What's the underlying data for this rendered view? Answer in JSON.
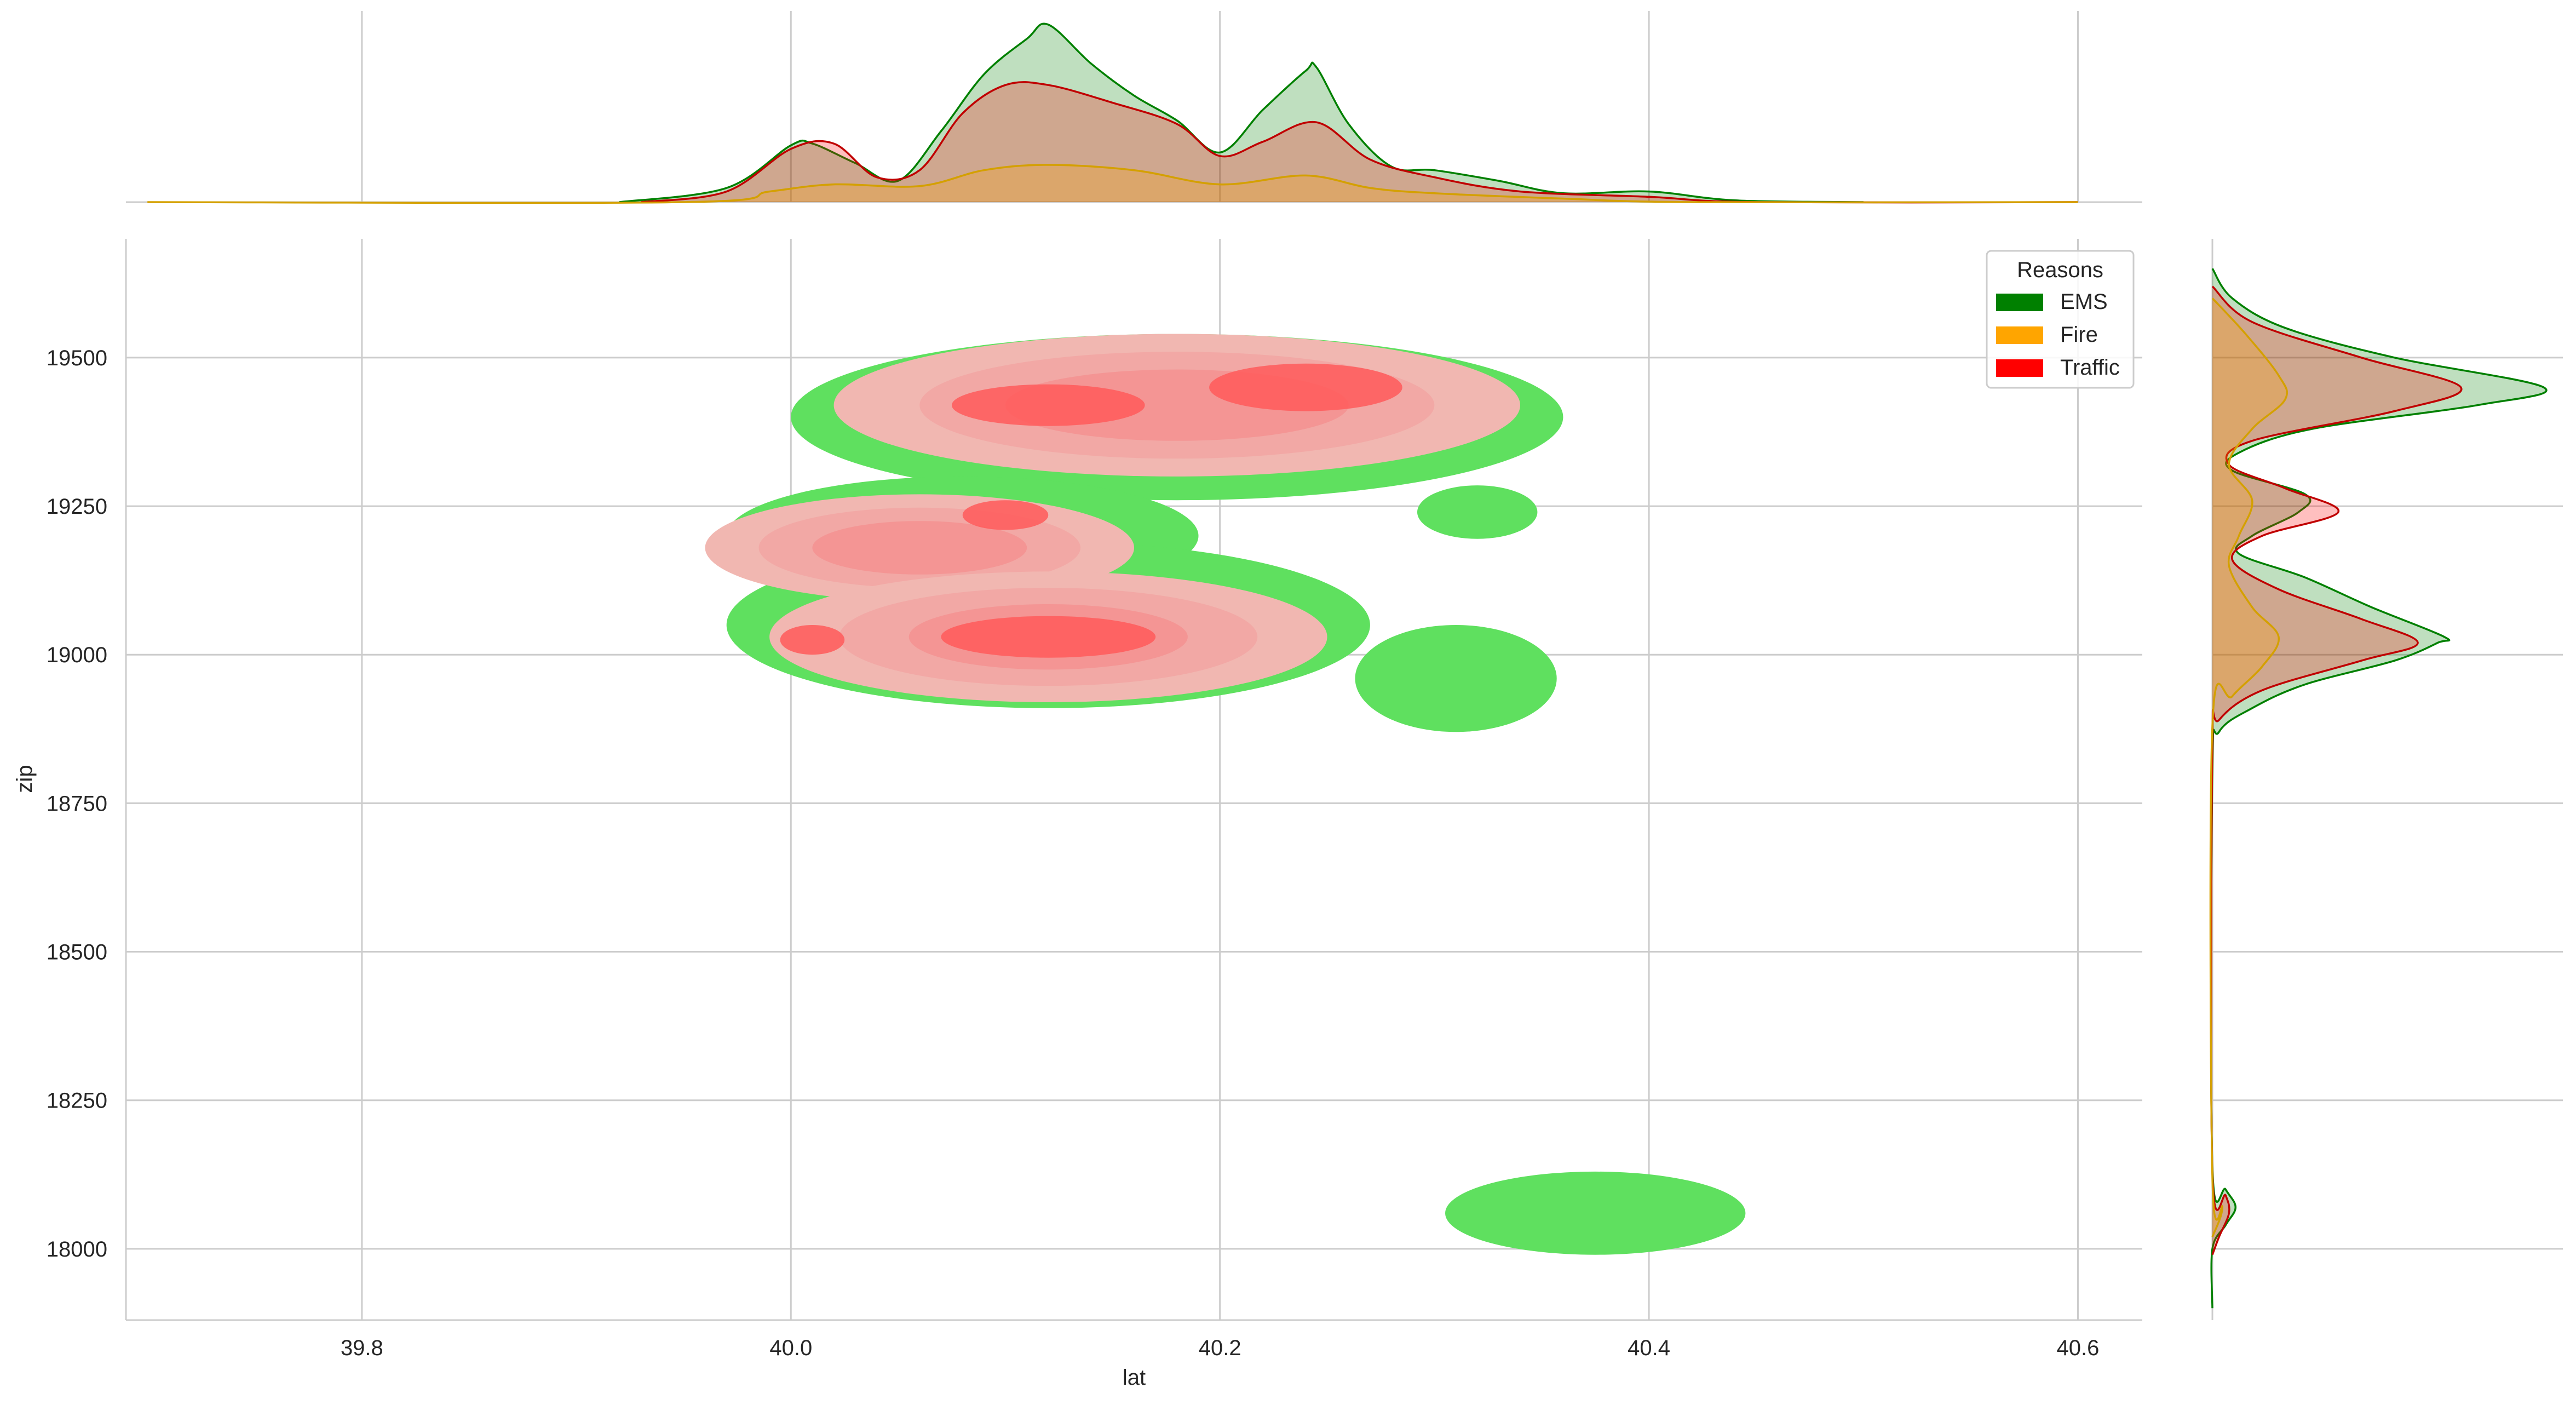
{
  "chart_data": {
    "type": "kde-joint",
    "xlabel": "lat",
    "ylabel": "zip",
    "xlim": [
      39.69,
      40.63
    ],
    "ylim": [
      17880,
      19700
    ],
    "x_ticks": [
      39.8,
      40.0,
      40.2,
      40.4,
      40.6
    ],
    "x_tick_labels": [
      "39.8",
      "40.0",
      "40.2",
      "40.4",
      "40.6"
    ],
    "y_ticks": [
      18000,
      18250,
      18500,
      18750,
      19000,
      19250,
      19500
    ],
    "y_tick_labels": [
      "18000",
      "18250",
      "18500",
      "18750",
      "19000",
      "19250",
      "19500"
    ],
    "grid": true,
    "legend": {
      "title": "Reasons",
      "placement": "top-right",
      "entries": [
        {
          "label": "EMS",
          "color": "#008000"
        },
        {
          "label": "Fire",
          "color": "#FFA500"
        },
        {
          "label": "Traffic",
          "color": "#FF0000"
        }
      ]
    },
    "series": [
      {
        "name": "EMS",
        "color": "#008000",
        "contour_color": "#5fe05f",
        "density_regions": [
          {
            "cx": 40.18,
            "cy": 19400,
            "rx": 0.18,
            "ry": 140
          },
          {
            "cx": 40.08,
            "cy": 19200,
            "rx": 0.11,
            "ry": 100
          },
          {
            "cx": 40.12,
            "cy": 19050,
            "rx": 0.15,
            "ry": 140
          },
          {
            "cx": 40.32,
            "cy": 19240,
            "rx": 0.028,
            "ry": 45
          },
          {
            "cx": 40.31,
            "cy": 18960,
            "rx": 0.047,
            "ry": 90
          },
          {
            "cx": 40.375,
            "cy": 18060,
            "rx": 0.07,
            "ry": 70
          }
        ],
        "marginal_x": [
          [
            39.92,
            0
          ],
          [
            39.97,
            0.08
          ],
          [
            40.0,
            0.32
          ],
          [
            40.01,
            0.33
          ],
          [
            40.03,
            0.22
          ],
          [
            40.05,
            0.12
          ],
          [
            40.07,
            0.4
          ],
          [
            40.09,
            0.72
          ],
          [
            40.11,
            0.92
          ],
          [
            40.12,
            1.0
          ],
          [
            40.14,
            0.78
          ],
          [
            40.16,
            0.6
          ],
          [
            40.18,
            0.46
          ],
          [
            40.2,
            0.28
          ],
          [
            40.22,
            0.52
          ],
          [
            40.24,
            0.74
          ],
          [
            40.245,
            0.76
          ],
          [
            40.26,
            0.44
          ],
          [
            40.28,
            0.2
          ],
          [
            40.3,
            0.18
          ],
          [
            40.33,
            0.12
          ],
          [
            40.36,
            0.05
          ],
          [
            40.4,
            0.06
          ],
          [
            40.44,
            0.01
          ],
          [
            40.5,
            0
          ]
        ],
        "marginal_y": [
          [
            19650,
            0
          ],
          [
            19600,
            0.06
          ],
          [
            19550,
            0.22
          ],
          [
            19500,
            0.55
          ],
          [
            19450,
            1.0
          ],
          [
            19420,
            0.8
          ],
          [
            19380,
            0.3
          ],
          [
            19340,
            0.08
          ],
          [
            19310,
            0.06
          ],
          [
            19270,
            0.28
          ],
          [
            19240,
            0.26
          ],
          [
            19200,
            0.12
          ],
          [
            19170,
            0.08
          ],
          [
            19130,
            0.28
          ],
          [
            19080,
            0.48
          ],
          [
            19030,
            0.7
          ],
          [
            19020,
            0.68
          ],
          [
            18990,
            0.55
          ],
          [
            18950,
            0.28
          ],
          [
            18910,
            0.12
          ],
          [
            18870,
            0.02
          ],
          [
            18800,
            0
          ],
          [
            18140,
            0
          ],
          [
            18100,
            0.04
          ],
          [
            18070,
            0.07
          ],
          [
            18040,
            0.04
          ],
          [
            18000,
            0
          ],
          [
            17900,
            0
          ]
        ]
      },
      {
        "name": "Fire",
        "color": "#FFA500",
        "contour_color": "#f1b7b1",
        "density_regions": [
          {
            "cx": 40.18,
            "cy": 19420,
            "rx": 0.16,
            "ry": 120
          },
          {
            "cx": 40.06,
            "cy": 19180,
            "rx": 0.1,
            "ry": 90
          },
          {
            "cx": 40.12,
            "cy": 19030,
            "rx": 0.13,
            "ry": 110
          }
        ],
        "marginal_x": [
          [
            39.7,
            0
          ],
          [
            39.95,
            0
          ],
          [
            39.99,
            0.06
          ],
          [
            40.02,
            0.1
          ],
          [
            40.06,
            0.09
          ],
          [
            40.09,
            0.18
          ],
          [
            40.12,
            0.21
          ],
          [
            40.16,
            0.18
          ],
          [
            40.2,
            0.1
          ],
          [
            40.24,
            0.15
          ],
          [
            40.27,
            0.08
          ],
          [
            40.3,
            0.05
          ],
          [
            40.36,
            0.02
          ],
          [
            40.42,
            0
          ],
          [
            40.6,
            0
          ]
        ],
        "marginal_y": [
          [
            19600,
            0
          ],
          [
            19540,
            0.1
          ],
          [
            19470,
            0.2
          ],
          [
            19430,
            0.22
          ],
          [
            19380,
            0.12
          ],
          [
            19320,
            0.05
          ],
          [
            19260,
            0.12
          ],
          [
            19200,
            0.08
          ],
          [
            19150,
            0.05
          ],
          [
            19080,
            0.12
          ],
          [
            19030,
            0.2
          ],
          [
            18980,
            0.15
          ],
          [
            18930,
            0.06
          ],
          [
            18880,
            0
          ],
          [
            18120,
            0
          ],
          [
            18070,
            0.03
          ],
          [
            18020,
            0
          ]
        ]
      },
      {
        "name": "Traffic",
        "color": "#FF0000",
        "contour_color": "#ff4b4b",
        "density_regions": [
          {
            "cx": 40.12,
            "cy": 19420,
            "rx": 0.045,
            "ry": 35
          },
          {
            "cx": 40.24,
            "cy": 19450,
            "rx": 0.045,
            "ry": 40
          },
          {
            "cx": 40.12,
            "cy": 19030,
            "rx": 0.05,
            "ry": 35
          },
          {
            "cx": 40.1,
            "cy": 19235,
            "rx": 0.02,
            "ry": 25
          },
          {
            "cx": 40.01,
            "cy": 19025,
            "rx": 0.015,
            "ry": 25
          }
        ],
        "marginal_x": [
          [
            39.93,
            0
          ],
          [
            39.97,
            0.06
          ],
          [
            40.0,
            0.3
          ],
          [
            40.02,
            0.33
          ],
          [
            40.04,
            0.14
          ],
          [
            40.06,
            0.18
          ],
          [
            40.08,
            0.5
          ],
          [
            40.1,
            0.66
          ],
          [
            40.12,
            0.66
          ],
          [
            40.15,
            0.56
          ],
          [
            40.18,
            0.44
          ],
          [
            40.2,
            0.26
          ],
          [
            40.22,
            0.34
          ],
          [
            40.245,
            0.45
          ],
          [
            40.27,
            0.24
          ],
          [
            40.3,
            0.14
          ],
          [
            40.34,
            0.06
          ],
          [
            40.4,
            0.03
          ],
          [
            40.45,
            0
          ],
          [
            40.6,
            0
          ]
        ],
        "marginal_y": [
          [
            19620,
            0
          ],
          [
            19560,
            0.12
          ],
          [
            19500,
            0.45
          ],
          [
            19450,
            0.75
          ],
          [
            19410,
            0.55
          ],
          [
            19360,
            0.12
          ],
          [
            19320,
            0.05
          ],
          [
            19280,
            0.22
          ],
          [
            19240,
            0.38
          ],
          [
            19200,
            0.15
          ],
          [
            19160,
            0.06
          ],
          [
            19110,
            0.2
          ],
          [
            19060,
            0.45
          ],
          [
            19020,
            0.62
          ],
          [
            18990,
            0.45
          ],
          [
            18940,
            0.15
          ],
          [
            18890,
            0.02
          ],
          [
            18840,
            0
          ],
          [
            18130,
            0
          ],
          [
            18090,
            0.04
          ],
          [
            18060,
            0.05
          ],
          [
            18020,
            0.02
          ],
          [
            17990,
            0
          ]
        ]
      }
    ]
  }
}
